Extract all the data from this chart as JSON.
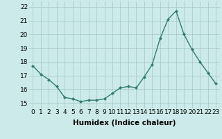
{
  "x": [
    0,
    1,
    2,
    3,
    4,
    5,
    6,
    7,
    8,
    9,
    10,
    11,
    12,
    13,
    14,
    15,
    16,
    17,
    18,
    19,
    20,
    21,
    22,
    23
  ],
  "y": [
    17.7,
    17.1,
    16.7,
    16.2,
    15.4,
    15.3,
    15.1,
    15.2,
    15.2,
    15.3,
    15.7,
    16.1,
    16.2,
    16.1,
    16.9,
    17.8,
    19.7,
    21.1,
    21.7,
    20.0,
    18.9,
    18.0,
    17.2,
    16.4
  ],
  "line_color": "#2e7d6e",
  "marker": "D",
  "marker_size": 2,
  "line_width": 1.0,
  "bg_color": "#cceaea",
  "grid_color": "#aacccc",
  "xlabel": "Humidex (Indice chaleur)",
  "xlim": [
    -0.5,
    23.5
  ],
  "ylim": [
    14.6,
    22.4
  ],
  "yticks": [
    15,
    16,
    17,
    18,
    19,
    20,
    21,
    22
  ],
  "xticks": [
    0,
    1,
    2,
    3,
    4,
    5,
    6,
    7,
    8,
    9,
    10,
    11,
    12,
    13,
    14,
    15,
    16,
    17,
    18,
    19,
    20,
    21,
    22,
    23
  ],
  "xlabel_fontsize": 7.5,
  "tick_fontsize": 6.5
}
